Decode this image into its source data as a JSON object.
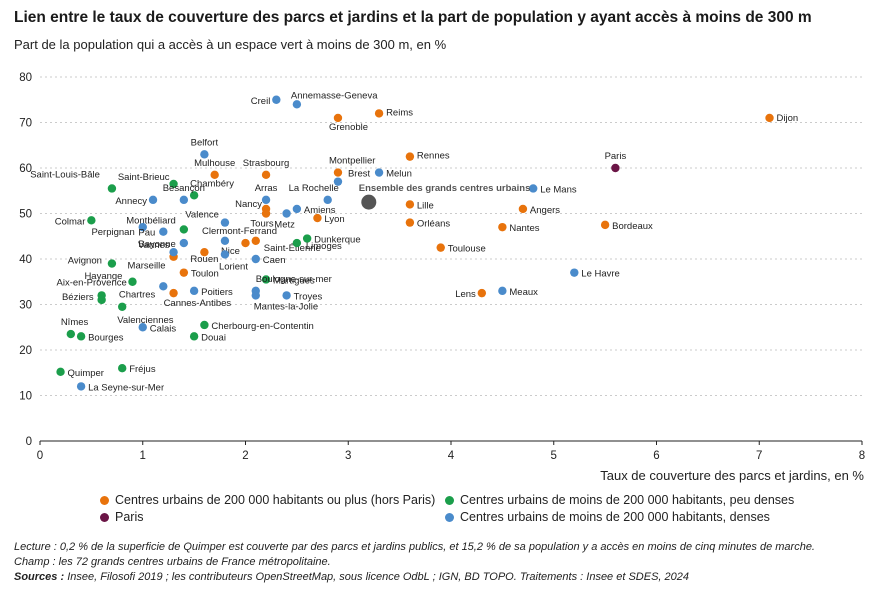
{
  "title": "Lien entre le taux de couverture des parcs et jardins et la part de population y ayant accès à moins de 300 m",
  "subtitle": "Part de la population qui a accès à un espace vert à moins de 300 m, en %",
  "chart_data": {
    "type": "scatter",
    "xlabel": "Taux de couverture des parcs et jardins, en %",
    "ylabel": "Part de la population qui a accès à un espace vert à moins de 300 m, en %",
    "xlim": [
      0,
      8
    ],
    "ylim": [
      0,
      80
    ],
    "x_ticks": [
      0,
      1,
      2,
      3,
      4,
      5,
      6,
      7,
      8
    ],
    "y_ticks": [
      0,
      10,
      20,
      30,
      40,
      50,
      60,
      70,
      80
    ],
    "grid": "horizontal dotted",
    "legend_position": "bottom",
    "colors": {
      "large": "#e8730c",
      "paris": "#6b1546",
      "small_sparse": "#1b9e4b",
      "small_dense": "#4a8bcb",
      "ensemble": "#555555"
    },
    "series": [
      {
        "key": "large",
        "name": "Centres urbains de 200 000 habitants ou plus (hors Paris)",
        "points": [
          {
            "label": "Dijon",
            "x": 7.1,
            "y": 71
          },
          {
            "label": "Reims",
            "x": 3.3,
            "y": 72
          },
          {
            "label": "Grenoble",
            "x": 2.9,
            "y": 71
          },
          {
            "label": "Rennes",
            "x": 3.6,
            "y": 62.5
          },
          {
            "label": "Montpellier",
            "x": 2.9,
            "y": 59
          },
          {
            "label": "Strasbourg",
            "x": 2.2,
            "y": 58.5
          },
          {
            "label": "Mulhouse",
            "x": 1.7,
            "y": 58.5
          },
          {
            "label": "Lille",
            "x": 3.6,
            "y": 52
          },
          {
            "label": "Angers",
            "x": 4.7,
            "y": 51
          },
          {
            "label": "Lyon",
            "x": 2.7,
            "y": 49
          },
          {
            "label": "Nancy",
            "x": 2.2,
            "y": 51
          },
          {
            "label": "Tours",
            "x": 2.2,
            "y": 50
          },
          {
            "label": "Orléans",
            "x": 3.6,
            "y": 48
          },
          {
            "label": "Nantes",
            "x": 4.5,
            "y": 47
          },
          {
            "label": "Bordeaux",
            "x": 5.5,
            "y": 47.5
          },
          {
            "label": "Toulouse",
            "x": 3.9,
            "y": 42.5
          },
          {
            "label": "Saint-Étienne",
            "x": 2.1,
            "y": 44
          },
          {
            "label": "Clermont-Ferrand",
            "x": 2.0,
            "y": 43.5
          },
          {
            "label": "Rouen",
            "x": 1.6,
            "y": 41.5
          },
          {
            "label": "Marseille",
            "x": 1.3,
            "y": 40.5
          },
          {
            "label": "Toulon",
            "x": 1.4,
            "y": 37
          },
          {
            "label": "Cannes-Antibes",
            "x": 1.3,
            "y": 32.5
          },
          {
            "label": "Lens",
            "x": 4.3,
            "y": 32.5
          }
        ]
      },
      {
        "key": "paris",
        "name": "Paris",
        "points": [
          {
            "label": "Paris",
            "x": 5.6,
            "y": 60
          }
        ]
      },
      {
        "key": "small_sparse",
        "name": "Centres urbains de moins de 200 000 habitants, peu denses",
        "points": [
          {
            "label": "Saint-Louis-Bâle",
            "x": 0.7,
            "y": 55.5
          },
          {
            "label": "Saint-Brieuc",
            "x": 1.3,
            "y": 56.5
          },
          {
            "label": "Chambéry",
            "x": 1.5,
            "y": 54
          },
          {
            "label": "Colmar",
            "x": 0.5,
            "y": 48.5
          },
          {
            "label": "Montbéliard",
            "x": 1.4,
            "y": 46.5
          },
          {
            "label": "Dunkerque",
            "x": 2.6,
            "y": 44.5
          },
          {
            "label": "Limoges",
            "x": 2.5,
            "y": 43.5
          },
          {
            "label": "Avignon",
            "x": 0.7,
            "y": 39
          },
          {
            "label": "Hayange",
            "x": 0.9,
            "y": 35
          },
          {
            "label": "Martigues",
            "x": 2.2,
            "y": 35.5
          },
          {
            "label": "Aix-en-Provence",
            "x": 0.6,
            "y": 32
          },
          {
            "label": "Béziers",
            "x": 0.6,
            "y": 31
          },
          {
            "label": "Valenciennes",
            "x": 0.8,
            "y": 29.5
          },
          {
            "label": "Cherbourg-en-Contentin",
            "x": 1.6,
            "y": 25.5
          },
          {
            "label": "Nîmes",
            "x": 0.3,
            "y": 23.5
          },
          {
            "label": "Bourges",
            "x": 0.4,
            "y": 23
          },
          {
            "label": "Douai",
            "x": 1.5,
            "y": 23
          },
          {
            "label": "Fréjus",
            "x": 0.8,
            "y": 16
          },
          {
            "label": "Quimper",
            "x": 0.2,
            "y": 15.2
          }
        ]
      },
      {
        "key": "small_dense",
        "name": "Centres urbains de moins de 200 000 habitants, denses",
        "points": [
          {
            "label": "Creil",
            "x": 2.3,
            "y": 75
          },
          {
            "label": "Annemasse-Geneva",
            "x": 2.5,
            "y": 74
          },
          {
            "label": "Belfort",
            "x": 1.6,
            "y": 63
          },
          {
            "label": "Brest",
            "x": 2.9,
            "y": 57
          },
          {
            "label": "Melun",
            "x": 3.3,
            "y": 59
          },
          {
            "label": "Le Mans",
            "x": 4.8,
            "y": 55.5
          },
          {
            "label": "La Rochelle",
            "x": 2.8,
            "y": 53
          },
          {
            "label": "Arras",
            "x": 2.2,
            "y": 53
          },
          {
            "label": "Besançon",
            "x": 1.4,
            "y": 53
          },
          {
            "label": "Annecy",
            "x": 1.1,
            "y": 53
          },
          {
            "label": "Amiens",
            "x": 2.5,
            "y": 51
          },
          {
            "label": "Metz",
            "x": 2.4,
            "y": 50
          },
          {
            "label": "Valence",
            "x": 1.8,
            "y": 48
          },
          {
            "label": "Perpignan",
            "x": 1.0,
            "y": 47
          },
          {
            "label": "Pau",
            "x": 1.2,
            "y": 46
          },
          {
            "label": "Bayonne",
            "x": 1.4,
            "y": 43.5
          },
          {
            "label": "Nice",
            "x": 1.8,
            "y": 44
          },
          {
            "label": "Vannes",
            "x": 1.3,
            "y": 41.5
          },
          {
            "label": "Lorient",
            "x": 1.8,
            "y": 41
          },
          {
            "label": "Caen",
            "x": 2.1,
            "y": 40
          },
          {
            "label": "Le Havre",
            "x": 5.2,
            "y": 37
          },
          {
            "label": "Poitiers",
            "x": 1.5,
            "y": 33
          },
          {
            "label": "Chartres",
            "x": 1.2,
            "y": 34
          },
          {
            "label": "Boulogne-sur-mer",
            "x": 2.1,
            "y": 33
          },
          {
            "label": "Troyes",
            "x": 2.4,
            "y": 32
          },
          {
            "label": "Meaux",
            "x": 4.5,
            "y": 33
          },
          {
            "label": "Mantes-la-Jolie",
            "x": 2.1,
            "y": 32
          },
          {
            "label": "Calais",
            "x": 1.0,
            "y": 25
          },
          {
            "label": "La Seyne-sur-Mer",
            "x": 0.4,
            "y": 12
          }
        ]
      }
    ],
    "highlight": {
      "label": "Ensemble des grands centres urbains",
      "x": 3.2,
      "y": 52.5
    }
  },
  "legend": [
    {
      "key": "large",
      "label": "Centres urbains de 200 000 habitants ou plus (hors Paris)"
    },
    {
      "key": "small_sparse",
      "label": "Centres urbains de moins de 200 000 habitants, peu denses"
    },
    {
      "key": "paris",
      "label": "Paris"
    },
    {
      "key": "small_dense",
      "label": "Centres urbains de moins de 200 000 habitants, denses"
    }
  ],
  "notes": {
    "lecture": "Lecture : 0,2 % de la superficie de Quimper est couverte par des parcs et jardins publics, et 15,2 % de sa population y a accès en moins de cinq minutes de marche.",
    "champ": "Champ : les 72 grands centres urbains de France métropolitaine.",
    "sources_label": "Sources :",
    "sources": " Insee, Filosofi 2019 ; les contributeurs OpenStreetMap, sous licence OdbL ; IGN, BD TOPO. Traitements : Insee et SDES, 2024"
  }
}
